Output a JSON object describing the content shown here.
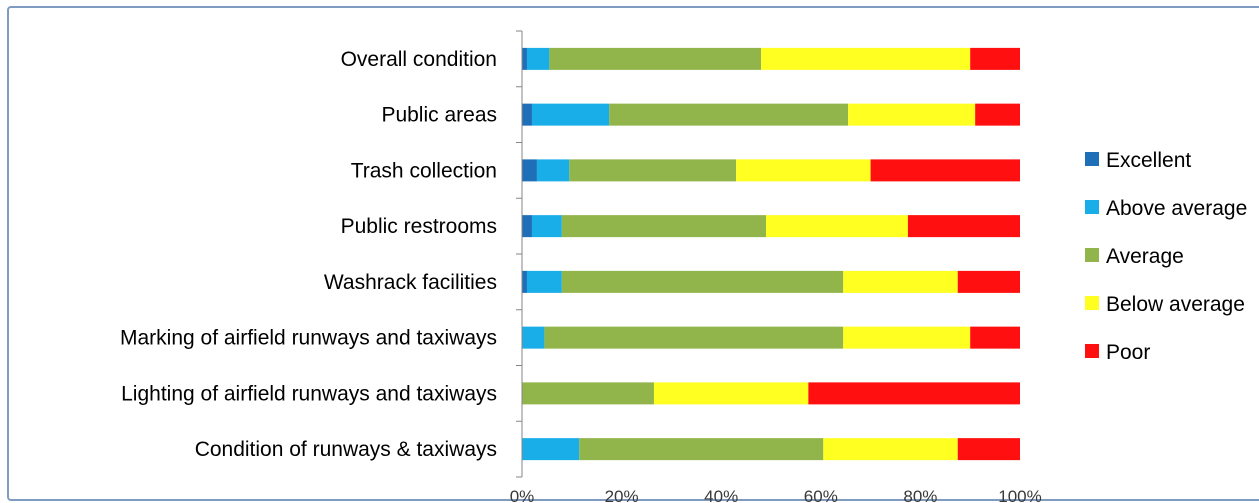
{
  "chart_data": {
    "type": "bar",
    "orientation": "horizontal",
    "stacked": "percent",
    "title": "",
    "xlabel": "",
    "ylabel": "",
    "xlim": [
      0,
      100
    ],
    "x_ticks": [
      "0%",
      "20%",
      "40%",
      "60%",
      "80%",
      "100%"
    ],
    "grid": false,
    "legend_position": "right",
    "categories": [
      "Overall condition",
      "Public areas",
      "Trash collection",
      "Public restrooms",
      "Washrack facilities",
      "Marking of airfield runways and taxiways",
      "Lighting of airfield runways and taxiways",
      "Condition of runways & taxiways"
    ],
    "series": [
      {
        "name": "Excellent",
        "color": "#1f6fb8",
        "values": [
          1,
          2,
          3,
          2,
          1,
          0,
          0,
          0
        ]
      },
      {
        "name": "Above average",
        "color": "#1aaee8",
        "values": [
          4.5,
          15.5,
          6.5,
          6,
          7,
          4.5,
          0,
          11.5
        ]
      },
      {
        "name": "Average",
        "color": "#92b54b",
        "values": [
          42.5,
          48,
          33.5,
          41,
          56.5,
          60,
          26.5,
          49
        ]
      },
      {
        "name": "Below average",
        "color": "#ffff22",
        "values": [
          42,
          25.5,
          27,
          28.5,
          23,
          25.5,
          31,
          27
        ]
      },
      {
        "name": "Poor",
        "color": "#ff0f0f",
        "values": [
          10,
          9,
          30,
          22.5,
          12.5,
          10,
          42.5,
          12.5
        ]
      }
    ]
  }
}
